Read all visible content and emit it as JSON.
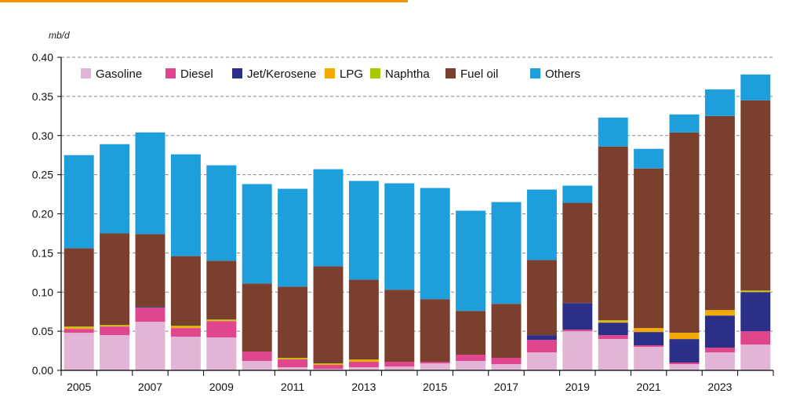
{
  "accent_color": "#f39200",
  "chart_data": {
    "type": "bar",
    "stacked": true,
    "unit": "mb/d",
    "title": "",
    "xlabel": "",
    "ylabel": "mb/d",
    "ylim": [
      0,
      0.4
    ],
    "yticks": [
      "0.00",
      "0.05",
      "0.10",
      "0.15",
      "0.20",
      "0.25",
      "0.30",
      "0.35",
      "0.40"
    ],
    "grid": "horizontal dashed",
    "legend": "top-left inside plot, single row",
    "categories": [
      "2005",
      "2006",
      "2007",
      "2008",
      "2009",
      "2010",
      "2011",
      "2012",
      "2013",
      "2014",
      "2015",
      "2016",
      "2017",
      "2018",
      "2019",
      "2020",
      "2021",
      "2022",
      "2023",
      "2024"
    ],
    "x_tick_labels": [
      "2005",
      "",
      "2007",
      "",
      "2009",
      "",
      "2011",
      "",
      "2013",
      "",
      "2015",
      "",
      "2017",
      "",
      "2019",
      "",
      "2021",
      "",
      "2023",
      ""
    ],
    "series": [
      {
        "name": "Gasoline",
        "color": "#e2b4d6",
        "values": [
          0.048,
          0.045,
          0.062,
          0.043,
          0.042,
          0.012,
          0.004,
          0.002,
          0.004,
          0.005,
          0.009,
          0.012,
          0.008,
          0.023,
          0.05,
          0.04,
          0.03,
          0.008,
          0.023,
          0.033
        ]
      },
      {
        "name": "Diesel",
        "color": "#e0468e",
        "values": [
          0.005,
          0.011,
          0.018,
          0.011,
          0.021,
          0.012,
          0.01,
          0.005,
          0.007,
          0.006,
          0.002,
          0.008,
          0.008,
          0.016,
          0.002,
          0.005,
          0.002,
          0.002,
          0.006,
          0.017
        ]
      },
      {
        "name": "Jet/Kerosene",
        "color": "#2b2f88",
        "values": [
          0.0,
          0.0,
          0.001,
          0.0,
          0.0,
          0.0,
          0.0,
          0.0,
          0.0,
          0.0,
          0.0,
          0.0,
          0.0,
          0.006,
          0.034,
          0.016,
          0.017,
          0.03,
          0.041,
          0.05
        ]
      },
      {
        "name": "LPG",
        "color": "#f2a900",
        "values": [
          0.002,
          0.001,
          0.0,
          0.002,
          0.001,
          0.0,
          0.001,
          0.001,
          0.002,
          0.0,
          0.0,
          0.0,
          0.0,
          0.0,
          0.0,
          0.002,
          0.005,
          0.008,
          0.007,
          0.001
        ]
      },
      {
        "name": "Naphtha",
        "color": "#a8c800",
        "values": [
          0.001,
          0.001,
          0.0,
          0.001,
          0.001,
          0.0,
          0.001,
          0.001,
          0.001,
          0.0,
          0.0,
          0.0,
          0.0,
          0.0,
          0.0,
          0.001,
          0.0,
          0.0,
          0.0,
          0.001
        ]
      },
      {
        "name": "Fuel oil",
        "color": "#7b3f2e",
        "values": [
          0.1,
          0.117,
          0.093,
          0.089,
          0.075,
          0.087,
          0.091,
          0.124,
          0.102,
          0.092,
          0.08,
          0.056,
          0.069,
          0.096,
          0.128,
          0.222,
          0.204,
          0.256,
          0.248,
          0.243
        ]
      },
      {
        "name": "Others",
        "color": "#1e9fdc",
        "values": [
          0.119,
          0.114,
          0.13,
          0.13,
          0.122,
          0.127,
          0.125,
          0.124,
          0.126,
          0.136,
          0.142,
          0.128,
          0.13,
          0.09,
          0.022,
          0.037,
          0.025,
          0.023,
          0.034,
          0.033
        ]
      }
    ]
  }
}
